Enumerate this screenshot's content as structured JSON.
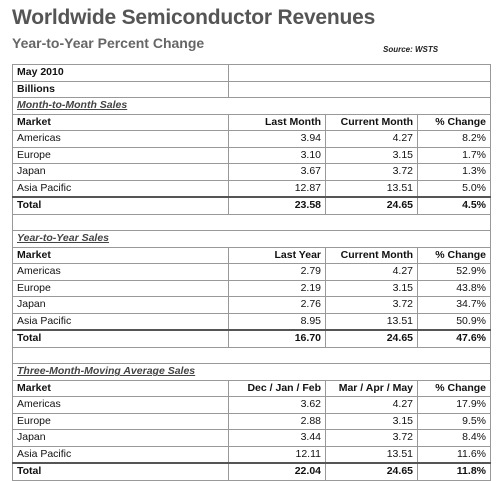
{
  "header": {
    "title": "Worldwide Semiconductor Revenues",
    "subtitle": "Year-to-Year Percent Change",
    "source": "Source: WSTS"
  },
  "table": {
    "date": "May 2010",
    "unit": "Billions",
    "sections": [
      {
        "title": "Month-to-Month Sales",
        "columns": [
          "Market",
          "Last Month",
          "Current Month",
          "% Change"
        ],
        "rows": [
          [
            "Americas",
            "3.94",
            "4.27",
            "8.2%"
          ],
          [
            "Europe",
            "3.10",
            "3.15",
            "1.7%"
          ],
          [
            "Japan",
            "3.67",
            "3.72",
            "1.3%"
          ],
          [
            "Asia Pacific",
            "12.87",
            "13.51",
            "5.0%"
          ]
        ],
        "total": [
          "Total",
          "23.58",
          "24.65",
          "4.5%"
        ]
      },
      {
        "title": "Year-to-Year Sales",
        "columns": [
          "Market",
          "Last Year",
          "Current Month",
          "% Change"
        ],
        "rows": [
          [
            "Americas",
            "2.79",
            "4.27",
            "52.9%"
          ],
          [
            "Europe",
            "2.19",
            "3.15",
            "43.8%"
          ],
          [
            "Japan",
            "2.76",
            "3.72",
            "34.7%"
          ],
          [
            "Asia Pacific",
            "8.95",
            "13.51",
            "50.9%"
          ]
        ],
        "total": [
          "Total",
          "16.70",
          "24.65",
          "47.6%"
        ]
      },
      {
        "title": "Three-Month-Moving Average Sales",
        "columns": [
          "Market",
          "Dec / Jan / Feb",
          "Mar / Apr / May",
          "% Change"
        ],
        "rows": [
          [
            "Americas",
            "3.62",
            "4.27",
            "17.9%"
          ],
          [
            "Europe",
            "2.88",
            "3.15",
            "9.5%"
          ],
          [
            "Japan",
            "3.44",
            "3.72",
            "8.4%"
          ],
          [
            "Asia Pacific",
            "12.11",
            "13.51",
            "11.6%"
          ]
        ],
        "total": [
          "Total",
          "22.04",
          "24.65",
          "11.8%"
        ]
      }
    ]
  }
}
